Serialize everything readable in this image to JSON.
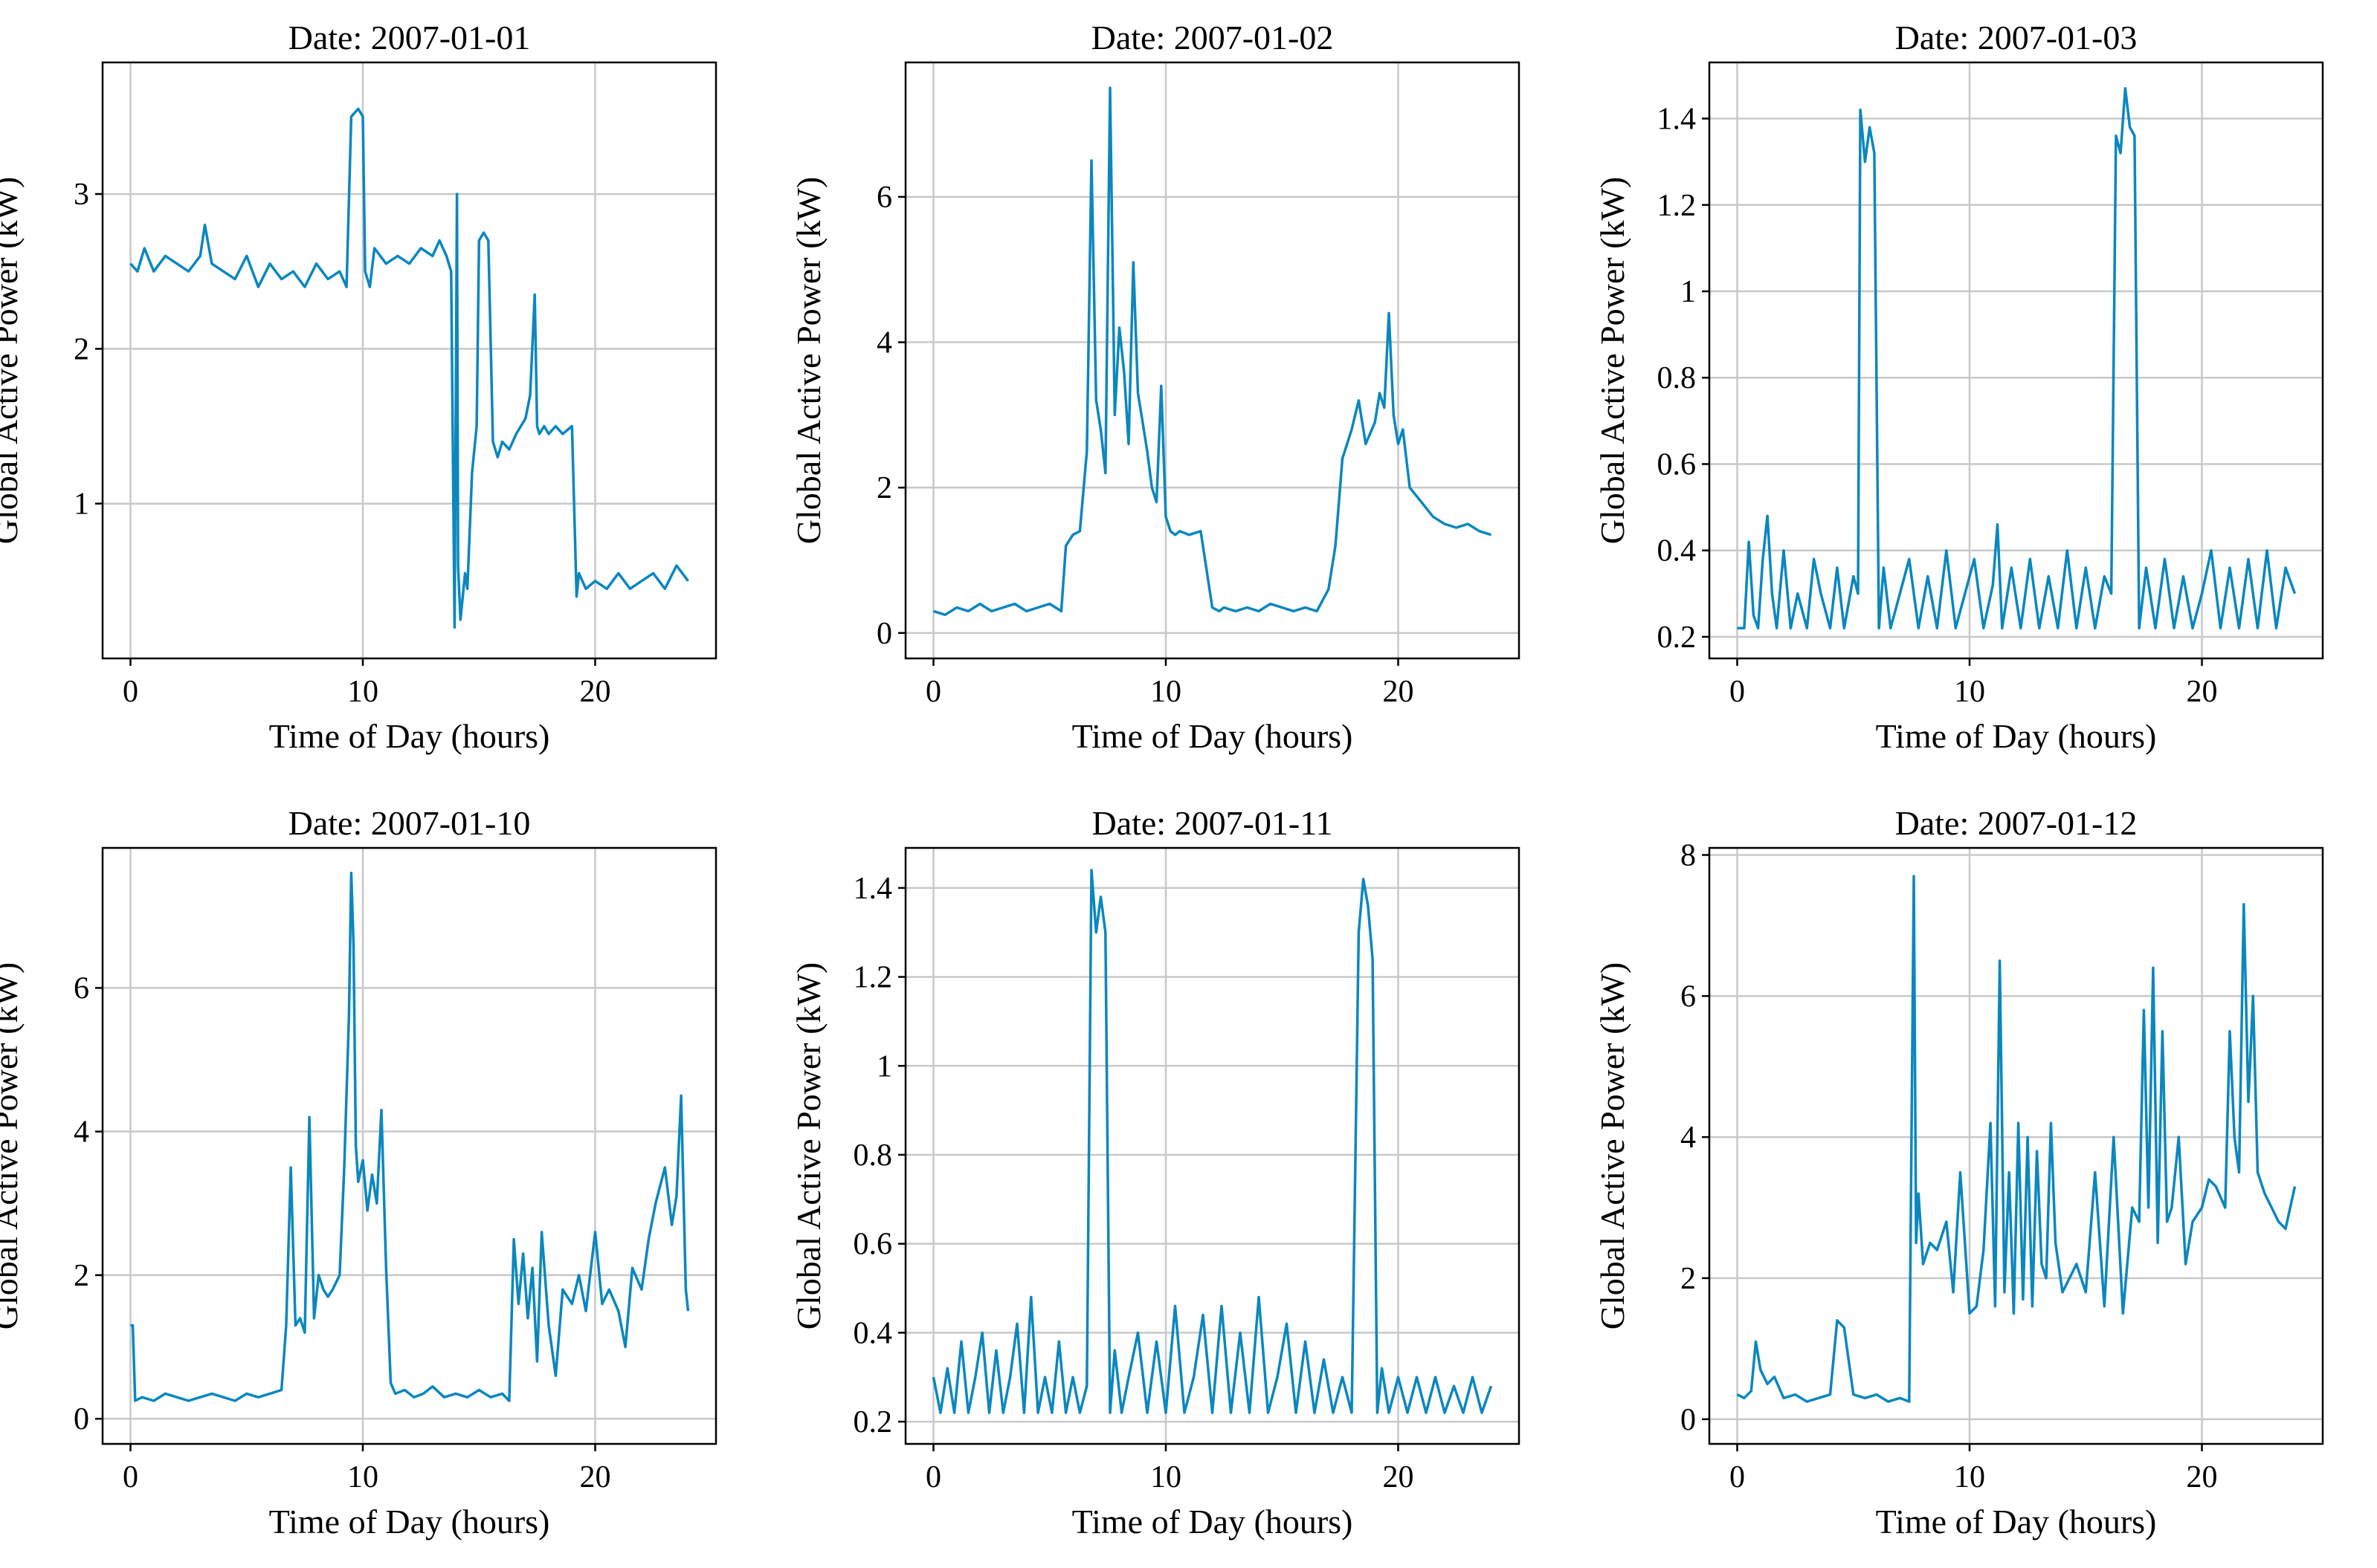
{
  "figure": {
    "line_color": "#0a87bf",
    "x_axis_label": "Time of Day (hours)",
    "y_axis_label": "Global Active Power (kW)"
  },
  "chart_data": [
    {
      "type": "line",
      "title": "Date: 2007-01-01",
      "xlabel": "Time of Day (hours)",
      "ylabel": "Global Active Power (kW)",
      "xlim": [
        -1.2,
        25.2
      ],
      "ylim": [
        0.0,
        3.85
      ],
      "xticks": [
        0,
        10,
        20
      ],
      "yticks": [
        1,
        2,
        3
      ],
      "grid": true,
      "series": [
        {
          "name": "Global Active Power",
          "x": [
            0,
            0.3,
            0.6,
            1,
            1.5,
            2,
            2.5,
            3,
            3.2,
            3.5,
            4,
            4.5,
            5,
            5.5,
            6,
            6.5,
            7,
            7.5,
            8,
            8.5,
            9,
            9.3,
            9.5,
            9.8,
            10,
            10.1,
            10.3,
            10.5,
            11,
            11.5,
            12,
            12.5,
            13,
            13.3,
            13.6,
            13.8,
            13.95,
            14.05,
            14.1,
            14.2,
            14.4,
            14.5,
            14.7,
            14.9,
            15,
            15.2,
            15.4,
            15.6,
            15.8,
            16,
            16.3,
            16.6,
            17,
            17.2,
            17.4,
            17.5,
            17.6,
            17.8,
            18,
            18.3,
            18.6,
            19,
            19.2,
            19.3,
            19.6,
            20,
            20.5,
            21,
            21.5,
            22,
            22.5,
            23,
            23.5,
            24
          ],
          "values": [
            2.55,
            2.5,
            2.65,
            2.5,
            2.6,
            2.55,
            2.5,
            2.6,
            2.8,
            2.55,
            2.5,
            2.45,
            2.6,
            2.4,
            2.55,
            2.45,
            2.5,
            2.4,
            2.55,
            2.45,
            2.5,
            2.4,
            3.5,
            3.55,
            3.5,
            2.5,
            2.4,
            2.65,
            2.55,
            2.6,
            2.55,
            2.65,
            2.6,
            2.7,
            2.6,
            2.5,
            0.2,
            3.0,
            0.6,
            0.25,
            0.55,
            0.45,
            1.2,
            1.5,
            2.7,
            2.75,
            2.7,
            1.4,
            1.3,
            1.4,
            1.35,
            1.45,
            1.55,
            1.7,
            2.35,
            1.5,
            1.45,
            1.5,
            1.45,
            1.5,
            1.45,
            1.5,
            0.4,
            0.55,
            0.45,
            0.5,
            0.45,
            0.55,
            0.45,
            0.5,
            0.55,
            0.45,
            0.6,
            0.5
          ]
        }
      ]
    },
    {
      "type": "line",
      "title": "Date: 2007-01-02",
      "xlabel": "Time of Day (hours)",
      "ylabel": "Global Active Power (kW)",
      "xlim": [
        -1.2,
        25.2
      ],
      "ylim": [
        -0.35,
        7.85
      ],
      "xticks": [
        0,
        10,
        20
      ],
      "yticks": [
        0,
        2,
        4,
        6
      ],
      "grid": true,
      "series": [
        {
          "name": "Global Active Power",
          "x": [
            0,
            0.5,
            1,
            1.5,
            2,
            2.5,
            3,
            3.5,
            4,
            4.5,
            5,
            5.5,
            5.7,
            6,
            6.3,
            6.6,
            6.8,
            7,
            7.2,
            7.4,
            7.6,
            7.8,
            8,
            8.2,
            8.4,
            8.6,
            8.8,
            9,
            9.2,
            9.4,
            9.6,
            9.8,
            10,
            10.2,
            10.4,
            10.6,
            11,
            11.5,
            12,
            12.3,
            12.5,
            13,
            13.5,
            14,
            14.5,
            15,
            15.5,
            16,
            16.5,
            17,
            17.3,
            17.6,
            18,
            18.3,
            18.6,
            19,
            19.2,
            19.4,
            19.6,
            19.8,
            20,
            20.2,
            20.5,
            21,
            21.5,
            22,
            22.5,
            23,
            23.5,
            24
          ],
          "values": [
            0.3,
            0.25,
            0.35,
            0.3,
            0.4,
            0.3,
            0.35,
            0.4,
            0.3,
            0.35,
            0.4,
            0.3,
            1.2,
            1.35,
            1.4,
            2.5,
            6.5,
            3.2,
            2.8,
            2.2,
            7.5,
            3.0,
            4.2,
            3.6,
            2.6,
            5.1,
            3.3,
            2.9,
            2.5,
            2.0,
            1.8,
            3.4,
            1.6,
            1.4,
            1.35,
            1.4,
            1.35,
            1.4,
            0.35,
            0.3,
            0.35,
            0.3,
            0.35,
            0.3,
            0.4,
            0.35,
            0.3,
            0.35,
            0.3,
            0.6,
            1.2,
            2.4,
            2.8,
            3.2,
            2.6,
            2.9,
            3.3,
            3.1,
            4.4,
            3.0,
            2.6,
            2.8,
            2.0,
            1.8,
            1.6,
            1.5,
            1.45,
            1.5,
            1.4,
            1.35
          ]
        }
      ]
    },
    {
      "type": "line",
      "title": "Date: 2007-01-03",
      "xlabel": "Time of Day (hours)",
      "ylabel": "Global Active Power (kW)",
      "xlim": [
        -1.2,
        25.2
      ],
      "ylim": [
        0.15,
        1.53
      ],
      "xticks": [
        0,
        10,
        20
      ],
      "yticks": [
        0.2,
        0.4,
        0.6,
        0.8,
        1.0,
        1.2,
        1.4
      ],
      "grid": true,
      "series": [
        {
          "name": "Global Active Power",
          "x": [
            0,
            0.3,
            0.5,
            0.7,
            0.9,
            1.1,
            1.3,
            1.5,
            1.7,
            2,
            2.3,
            2.6,
            3,
            3.3,
            3.6,
            4,
            4.3,
            4.6,
            5,
            5.2,
            5.3,
            5.5,
            5.7,
            5.9,
            6.1,
            6.3,
            6.6,
            7,
            7.4,
            7.8,
            8.2,
            8.6,
            9,
            9.4,
            9.8,
            10.2,
            10.6,
            11,
            11.2,
            11.4,
            11.8,
            12.2,
            12.6,
            13,
            13.4,
            13.8,
            14.2,
            14.6,
            15,
            15.4,
            15.8,
            16.1,
            16.3,
            16.5,
            16.7,
            16.9,
            17.1,
            17.3,
            17.6,
            18,
            18.4,
            18.8,
            19.2,
            19.6,
            20,
            20.4,
            20.8,
            21.2,
            21.6,
            22,
            22.4,
            22.8,
            23.2,
            23.6,
            24
          ],
          "values": [
            0.22,
            0.22,
            0.42,
            0.25,
            0.22,
            0.38,
            0.48,
            0.3,
            0.22,
            0.4,
            0.22,
            0.3,
            0.22,
            0.38,
            0.3,
            0.22,
            0.36,
            0.22,
            0.34,
            0.3,
            1.42,
            1.3,
            1.38,
            1.32,
            0.22,
            0.36,
            0.22,
            0.3,
            0.38,
            0.22,
            0.34,
            0.22,
            0.4,
            0.22,
            0.3,
            0.38,
            0.22,
            0.32,
            0.46,
            0.22,
            0.36,
            0.22,
            0.38,
            0.22,
            0.34,
            0.22,
            0.4,
            0.22,
            0.36,
            0.22,
            0.34,
            0.3,
            1.36,
            1.32,
            1.47,
            1.38,
            1.36,
            0.22,
            0.36,
            0.22,
            0.38,
            0.22,
            0.34,
            0.22,
            0.3,
            0.4,
            0.22,
            0.36,
            0.22,
            0.38,
            0.22,
            0.4,
            0.22,
            0.36,
            0.3
          ]
        }
      ]
    },
    {
      "type": "line",
      "title": "Date: 2007-01-10",
      "xlabel": "Time of Day (hours)",
      "ylabel": "Global Active Power (kW)",
      "xlim": [
        -1.2,
        25.2
      ],
      "ylim": [
        -0.35,
        7.95
      ],
      "xticks": [
        0,
        10,
        20
      ],
      "yticks": [
        0,
        2,
        4,
        6
      ],
      "grid": true,
      "series": [
        {
          "name": "Global Active Power",
          "x": [
            0,
            0.1,
            0.2,
            0.5,
            1,
            1.5,
            2,
            2.5,
            3,
            3.5,
            4,
            4.5,
            5,
            5.5,
            6,
            6.5,
            6.7,
            6.9,
            7.1,
            7.3,
            7.5,
            7.7,
            7.9,
            8.1,
            8.3,
            8.5,
            8.7,
            9,
            9.2,
            9.4,
            9.5,
            9.6,
            9.7,
            9.8,
            10,
            10.2,
            10.4,
            10.6,
            10.8,
            11,
            11.2,
            11.4,
            11.8,
            12.2,
            12.6,
            13,
            13.5,
            14,
            14.5,
            15,
            15.5,
            16,
            16.3,
            16.5,
            16.7,
            16.9,
            17.1,
            17.3,
            17.5,
            17.7,
            18,
            18.3,
            18.6,
            19,
            19.3,
            19.6,
            20,
            20.3,
            20.6,
            21,
            21.3,
            21.6,
            22,
            22.3,
            22.6,
            23,
            23.3,
            23.5,
            23.7,
            23.9,
            24
          ],
          "values": [
            1.3,
            1.3,
            0.25,
            0.3,
            0.25,
            0.35,
            0.3,
            0.25,
            0.3,
            0.35,
            0.3,
            0.25,
            0.35,
            0.3,
            0.35,
            0.4,
            1.3,
            3.5,
            1.3,
            1.4,
            1.2,
            4.2,
            1.4,
            2.0,
            1.8,
            1.7,
            1.8,
            2.0,
            3.5,
            5.6,
            7.6,
            6.6,
            3.8,
            3.3,
            3.6,
            2.9,
            3.4,
            3.0,
            4.3,
            2.1,
            0.5,
            0.35,
            0.4,
            0.3,
            0.35,
            0.45,
            0.3,
            0.35,
            0.3,
            0.4,
            0.3,
            0.35,
            0.25,
            2.5,
            1.6,
            2.3,
            1.4,
            2.1,
            0.8,
            2.6,
            1.3,
            0.6,
            1.8,
            1.6,
            2.0,
            1.5,
            2.6,
            1.6,
            1.8,
            1.5,
            1.0,
            2.1,
            1.8,
            2.5,
            3.0,
            3.5,
            2.7,
            3.1,
            4.5,
            1.8,
            1.5
          ]
        }
      ]
    },
    {
      "type": "line",
      "title": "Date: 2007-01-11",
      "xlabel": "Time of Day (hours)",
      "ylabel": "Global Active Power (kW)",
      "xlim": [
        -1.2,
        25.2
      ],
      "ylim": [
        0.15,
        1.49
      ],
      "xticks": [
        0,
        10,
        20
      ],
      "yticks": [
        0.2,
        0.4,
        0.6,
        0.8,
        1.0,
        1.2,
        1.4
      ],
      "grid": true,
      "series": [
        {
          "name": "Global Active Power",
          "x": [
            0,
            0.3,
            0.6,
            0.9,
            1.2,
            1.5,
            1.8,
            2.1,
            2.4,
            2.7,
            3,
            3.3,
            3.6,
            3.9,
            4.2,
            4.5,
            4.8,
            5.1,
            5.4,
            5.7,
            6,
            6.3,
            6.6,
            6.8,
            7,
            7.2,
            7.4,
            7.6,
            7.8,
            8.1,
            8.4,
            8.8,
            9.2,
            9.6,
            10,
            10.4,
            10.8,
            11.2,
            11.6,
            12,
            12.4,
            12.8,
            13.2,
            13.6,
            14,
            14.4,
            14.8,
            15.2,
            15.6,
            16,
            16.4,
            16.8,
            17.2,
            17.6,
            18,
            18.3,
            18.5,
            18.7,
            18.9,
            19.1,
            19.3,
            19.6,
            20,
            20.4,
            20.8,
            21.2,
            21.6,
            22,
            22.4,
            22.8,
            23.2,
            23.6,
            24
          ],
          "values": [
            0.3,
            0.22,
            0.32,
            0.22,
            0.38,
            0.22,
            0.3,
            0.4,
            0.22,
            0.36,
            0.22,
            0.3,
            0.42,
            0.22,
            0.48,
            0.22,
            0.3,
            0.22,
            0.38,
            0.22,
            0.3,
            0.22,
            0.28,
            1.44,
            1.3,
            1.38,
            1.3,
            0.22,
            0.36,
            0.22,
            0.3,
            0.4,
            0.22,
            0.38,
            0.22,
            0.46,
            0.22,
            0.3,
            0.44,
            0.22,
            0.46,
            0.22,
            0.4,
            0.22,
            0.48,
            0.22,
            0.3,
            0.42,
            0.22,
            0.38,
            0.22,
            0.34,
            0.22,
            0.3,
            0.22,
            1.3,
            1.42,
            1.36,
            1.24,
            0.22,
            0.32,
            0.22,
            0.3,
            0.22,
            0.3,
            0.22,
            0.3,
            0.22,
            0.28,
            0.22,
            0.3,
            0.22,
            0.28
          ]
        }
      ]
    },
    {
      "type": "line",
      "title": "Date: 2007-01-12",
      "xlabel": "Time of Day (hours)",
      "ylabel": "Global Active Power (kW)",
      "xlim": [
        -1.2,
        25.2
      ],
      "ylim": [
        -0.35,
        8.1
      ],
      "xticks": [
        0,
        10,
        20
      ],
      "yticks": [
        0,
        2,
        4,
        6,
        8
      ],
      "grid": true,
      "series": [
        {
          "name": "Global Active Power",
          "x": [
            0,
            0.3,
            0.6,
            0.8,
            1,
            1.3,
            1.6,
            2,
            2.5,
            3,
            3.5,
            4,
            4.3,
            4.6,
            5,
            5.5,
            6,
            6.5,
            7,
            7.4,
            7.6,
            7.7,
            7.8,
            8,
            8.3,
            8.6,
            9,
            9.3,
            9.6,
            10,
            10.3,
            10.6,
            10.9,
            11.1,
            11.3,
            11.5,
            11.7,
            11.9,
            12.1,
            12.3,
            12.5,
            12.7,
            12.9,
            13.1,
            13.3,
            13.5,
            13.7,
            14,
            14.3,
            14.6,
            15,
            15.4,
            15.8,
            16.2,
            16.6,
            17,
            17.3,
            17.5,
            17.7,
            17.9,
            18.1,
            18.3,
            18.5,
            18.7,
            19,
            19.3,
            19.6,
            20,
            20.3,
            20.6,
            21,
            21.2,
            21.4,
            21.6,
            21.8,
            22,
            22.2,
            22.4,
            22.7,
            23,
            23.3,
            23.6,
            24
          ],
          "values": [
            0.35,
            0.3,
            0.4,
            1.1,
            0.7,
            0.5,
            0.6,
            0.3,
            0.35,
            0.25,
            0.3,
            0.35,
            1.4,
            1.3,
            0.35,
            0.3,
            0.35,
            0.25,
            0.3,
            0.25,
            7.7,
            2.5,
            3.2,
            2.2,
            2.5,
            2.4,
            2.8,
            1.8,
            3.5,
            1.5,
            1.6,
            2.4,
            4.2,
            1.6,
            6.5,
            1.8,
            3.5,
            1.5,
            4.2,
            1.7,
            4.0,
            1.6,
            3.8,
            2.2,
            2.0,
            4.2,
            2.5,
            1.8,
            2.0,
            2.2,
            1.8,
            3.5,
            1.6,
            4.0,
            1.5,
            3.0,
            2.8,
            5.8,
            3.0,
            6.4,
            2.5,
            5.5,
            2.8,
            3.0,
            4.0,
            2.2,
            2.8,
            3.0,
            3.4,
            3.3,
            3.0,
            5.5,
            4.0,
            3.5,
            7.3,
            4.5,
            6.0,
            3.5,
            3.2,
            3.0,
            2.8,
            2.7,
            3.3
          ]
        }
      ]
    }
  ]
}
